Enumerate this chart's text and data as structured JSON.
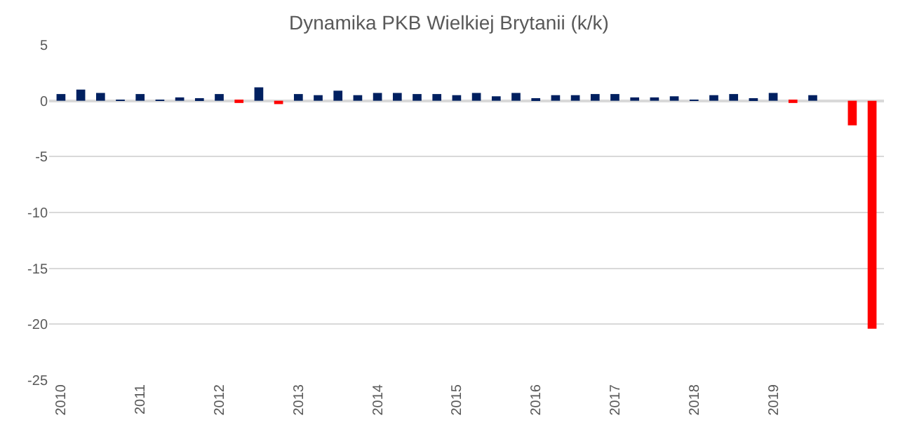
{
  "chart_data": {
    "type": "bar",
    "title": "Dynamika PKB Wielkiej Brytanii (k/k)",
    "categories": [
      "2010",
      null,
      null,
      null,
      "2011",
      null,
      null,
      null,
      "2012",
      null,
      null,
      null,
      "2013",
      null,
      null,
      null,
      "2014",
      null,
      null,
      null,
      "2015",
      null,
      null,
      null,
      "2016",
      null,
      null,
      null,
      "2017",
      null,
      null,
      null,
      "2018",
      null,
      null,
      null,
      "2019",
      null,
      null,
      null,
      null,
      null
    ],
    "values": [
      0.6,
      1.0,
      0.7,
      0.1,
      0.6,
      0.1,
      0.3,
      0.2,
      0.6,
      -0.2,
      1.2,
      -0.3,
      0.6,
      0.5,
      0.9,
      0.5,
      0.7,
      0.7,
      0.6,
      0.6,
      0.5,
      0.7,
      0.4,
      0.7,
      0.2,
      0.5,
      0.5,
      0.6,
      0.6,
      0.3,
      0.3,
      0.4,
      0.1,
      0.5,
      0.6,
      0.2,
      0.7,
      -0.2,
      0.5,
      0.0,
      -2.2,
      -20.4
    ],
    "colors": [
      "#002060",
      "#002060",
      "#002060",
      "#002060",
      "#002060",
      "#002060",
      "#002060",
      "#002060",
      "#002060",
      "#ff0000",
      "#002060",
      "#ff0000",
      "#002060",
      "#002060",
      "#002060",
      "#002060",
      "#002060",
      "#002060",
      "#002060",
      "#002060",
      "#002060",
      "#002060",
      "#002060",
      "#002060",
      "#002060",
      "#002060",
      "#002060",
      "#002060",
      "#002060",
      "#002060",
      "#002060",
      "#002060",
      "#002060",
      "#002060",
      "#002060",
      "#002060",
      "#002060",
      "#ff0000",
      "#002060",
      "#002060",
      "#ff0000",
      "#ff0000"
    ],
    "ylim": [
      -25,
      5
    ],
    "yticks": [
      -25,
      -20,
      -15,
      -10,
      -5,
      0,
      5
    ],
    "grid": "y"
  }
}
